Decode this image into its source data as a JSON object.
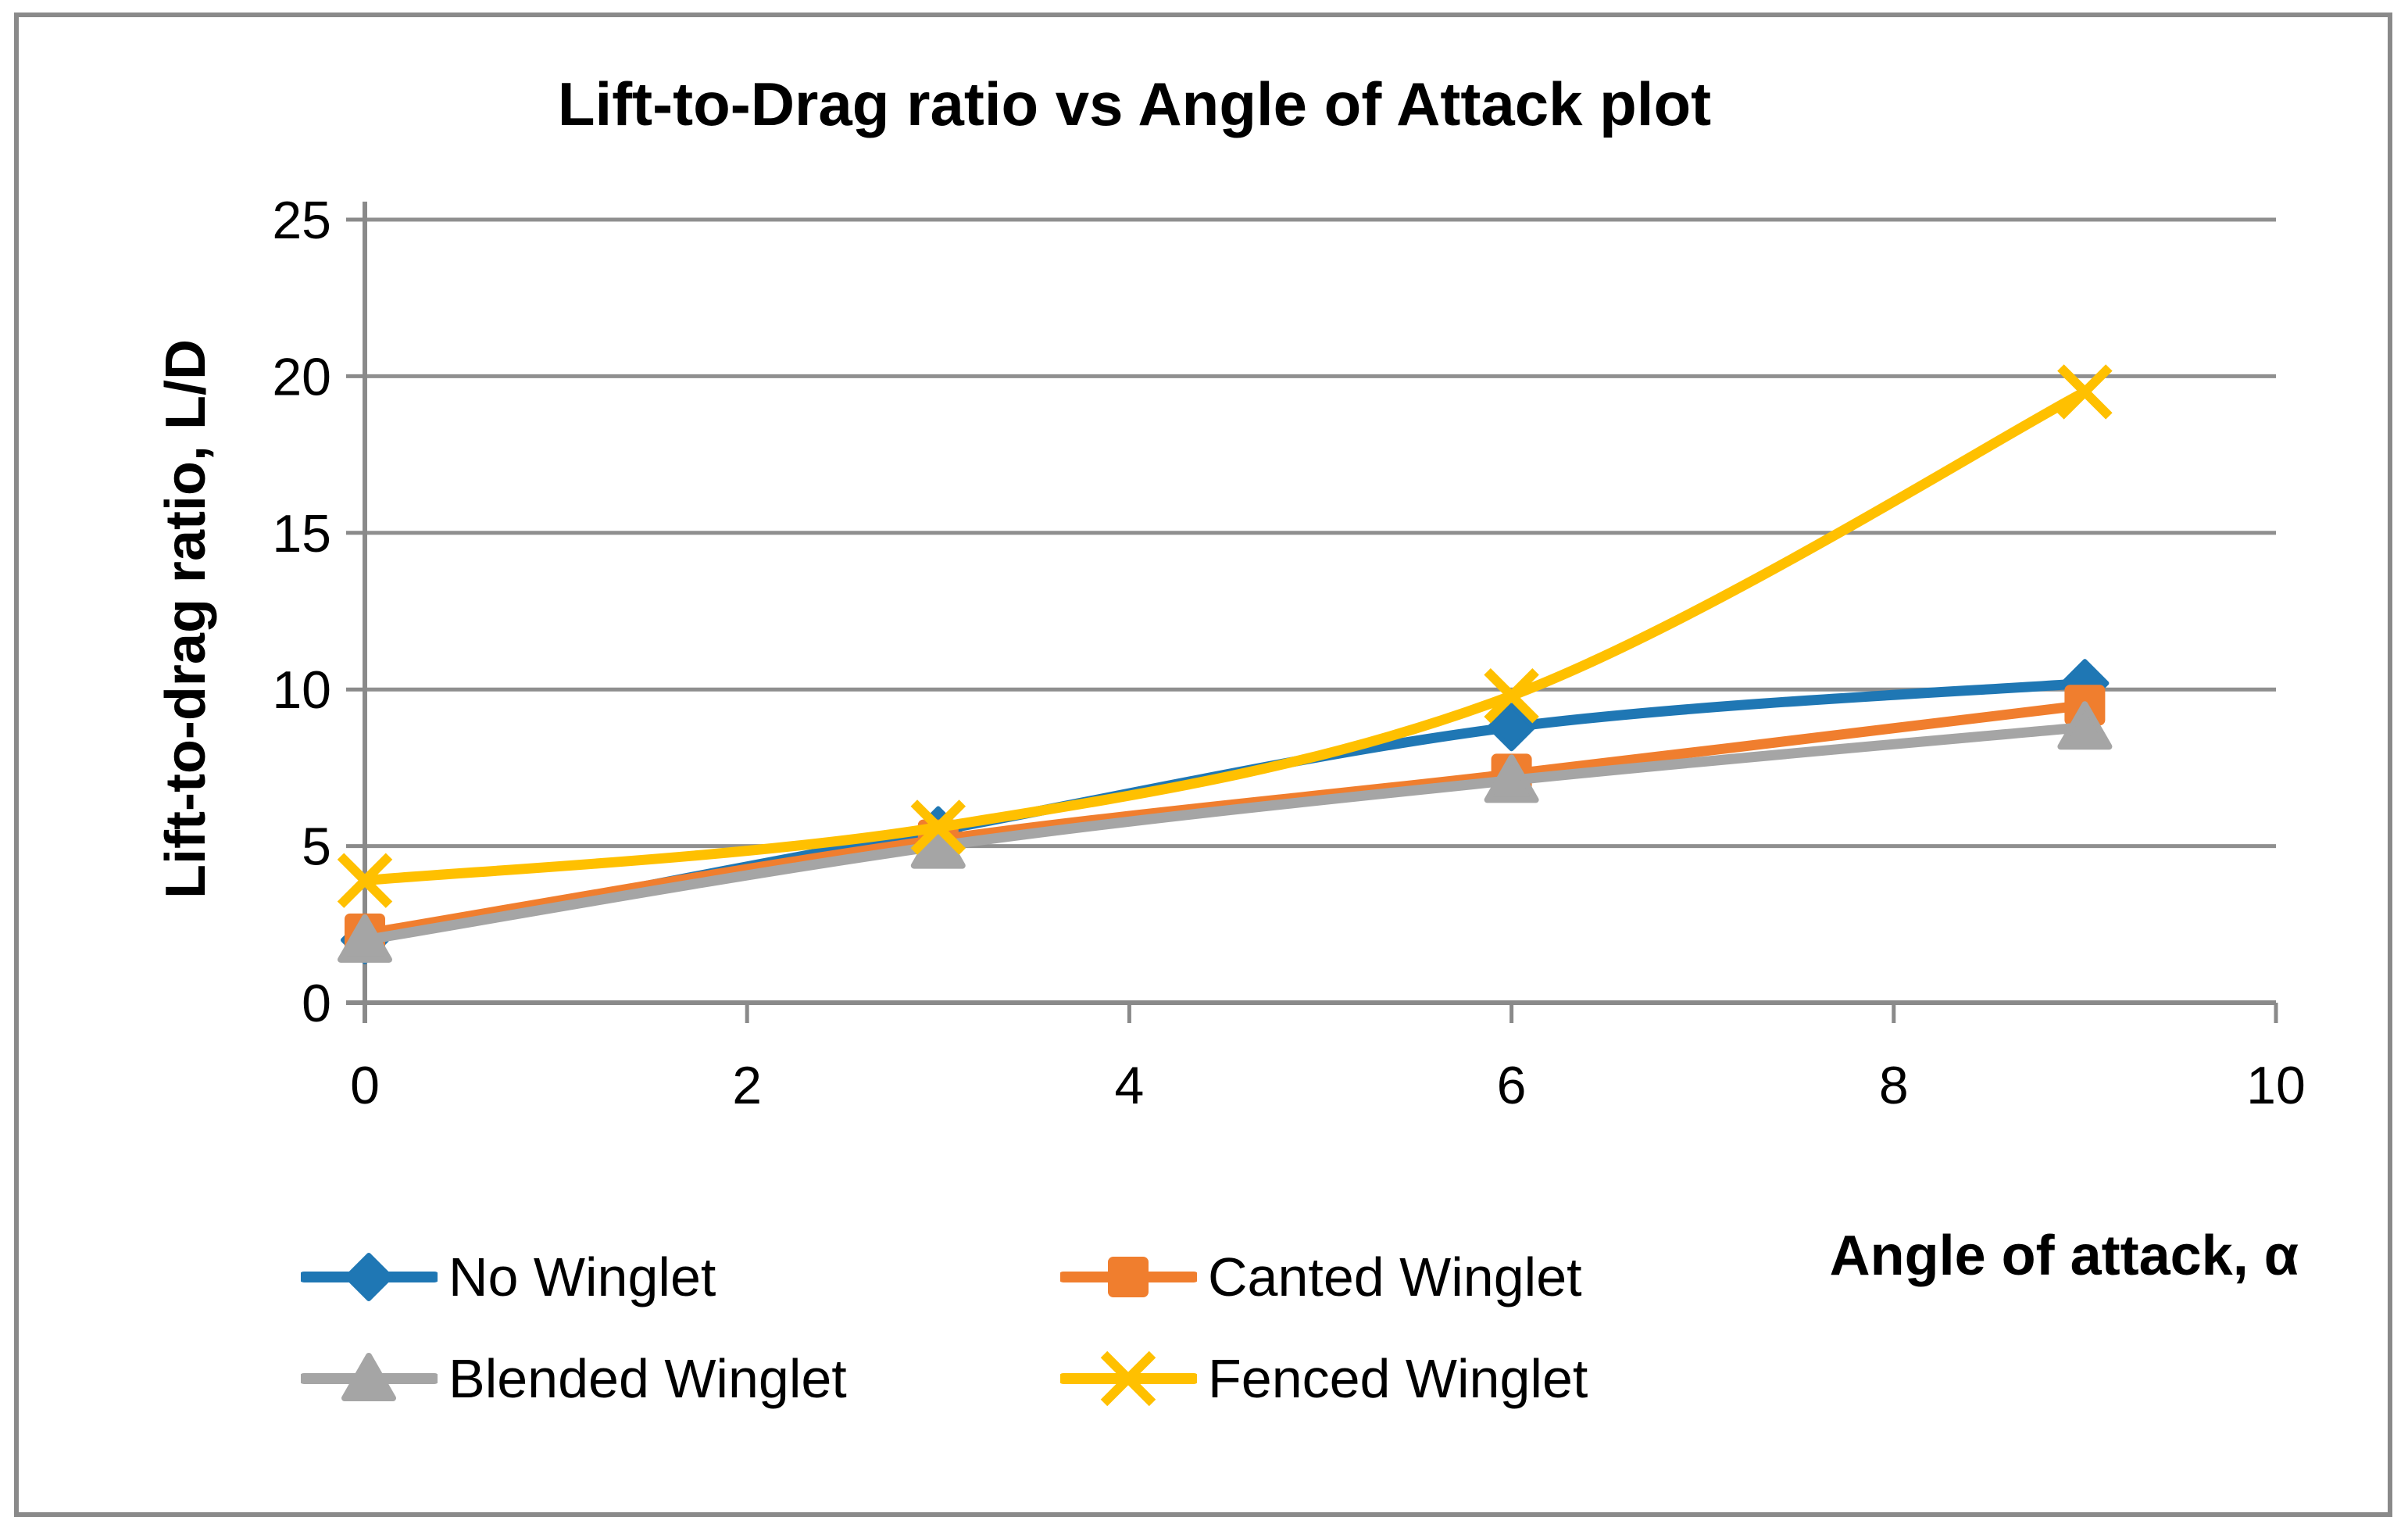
{
  "figure": {
    "title": "Lift-to-Drag ratio vs Angle of Attack plot"
  },
  "axes": {
    "x_title": "Angle of attack, α",
    "y_title": "Lift-to-drag ratio, L/D"
  },
  "legend": {
    "items": [
      {
        "label": "No Winglet",
        "marker": "diamond",
        "color": "#1F77B4"
      },
      {
        "label": "Canted Winglet",
        "marker": "square",
        "color": "#F07E2E"
      },
      {
        "label": "Blended Winglet",
        "marker": "triangle",
        "color": "#A5A5A5"
      },
      {
        "label": "Fenced Winglet",
        "marker": "x",
        "color": "#FFC000"
      }
    ]
  },
  "chart_data": {
    "type": "line",
    "title": "Lift-to-Drag ratio vs Angle of Attack plot",
    "xlabel": "Angle of attack, α",
    "ylabel": "Lift-to-drag ratio, L/D",
    "x": [
      0,
      3,
      6,
      9
    ],
    "series": [
      {
        "name": "No Winglet",
        "marker": "diamond",
        "color": "#1F77B4",
        "values": [
          2.0,
          5.5,
          8.8,
          10.2
        ]
      },
      {
        "name": "Canted Winglet",
        "marker": "square",
        "color": "#F07E2E",
        "values": [
          2.2,
          5.2,
          7.3,
          9.5
        ]
      },
      {
        "name": "Blended Winglet",
        "marker": "triangle",
        "color": "#A5A5A5",
        "values": [
          2.0,
          5.0,
          7.1,
          8.8
        ]
      },
      {
        "name": "Fenced Winglet",
        "marker": "x",
        "color": "#FFC000",
        "values": [
          3.9,
          5.6,
          9.8,
          19.5
        ]
      }
    ],
    "xlim": [
      0,
      10
    ],
    "ylim": [
      0,
      25
    ],
    "x_ticks": [
      0,
      2,
      4,
      6,
      8,
      10
    ],
    "y_ticks": [
      0,
      5,
      10,
      15,
      20,
      25
    ],
    "grid": "horizontal",
    "gridline_color": "#8f8f8f",
    "axis_color": "#8a8a8a",
    "line_style": "smoothed",
    "legend_position": "bottom-left two-column"
  }
}
